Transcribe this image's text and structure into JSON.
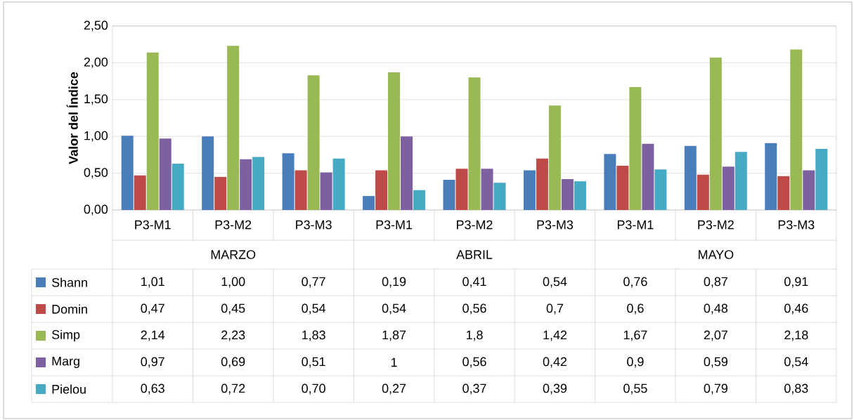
{
  "chart_data": {
    "type": "bar",
    "ylabel": "Valor del Índice",
    "categories": [
      "P3-M1",
      "P3-M2",
      "P3-M3",
      "P3-M1",
      "P3-M2",
      "P3-M3",
      "P3-M1",
      "P3-M2",
      "P3-M3"
    ],
    "annotations": [
      "MARZO",
      "ABRIL",
      "MAYO"
    ],
    "series": [
      {
        "name": "Shann",
        "color": "#4a7ebb",
        "values": [
          1.01,
          1.0,
          0.77,
          0.19,
          0.41,
          0.54,
          0.76,
          0.87,
          0.91
        ],
        "value_labels": [
          "1,01",
          "1,00",
          "0,77",
          "0,19",
          "0,41",
          "0,54",
          "0,76",
          "0,87",
          "0,91"
        ]
      },
      {
        "name": "Domin",
        "color": "#be4b48",
        "values": [
          0.47,
          0.45,
          0.54,
          0.54,
          0.56,
          0.7,
          0.6,
          0.48,
          0.46
        ],
        "value_labels": [
          "0,47",
          "0,45",
          "0,54",
          "0,54",
          "0,56",
          "0,7",
          "0,6",
          "0,48",
          "0,46"
        ]
      },
      {
        "name": "Simp",
        "color": "#98b954",
        "values": [
          2.14,
          2.23,
          1.83,
          1.87,
          1.8,
          1.42,
          1.67,
          2.07,
          2.18
        ],
        "value_labels": [
          "2,14",
          "2,23",
          "1,83",
          "1,87",
          "1,8",
          "1,42",
          "1,67",
          "2,07",
          "2,18"
        ]
      },
      {
        "name": "Marg",
        "color": "#7d60a0",
        "values": [
          0.97,
          0.69,
          0.51,
          1,
          0.56,
          0.42,
          0.9,
          0.59,
          0.54
        ],
        "value_labels": [
          "0,97",
          "0,69",
          "0,51",
          "1",
          "0,56",
          "0,42",
          "0,9",
          "0,59",
          "0,54"
        ]
      },
      {
        "name": "Pielou",
        "color": "#46aac5",
        "values": [
          0.63,
          0.72,
          0.7,
          0.27,
          0.37,
          0.39,
          0.55,
          0.79,
          0.83
        ],
        "value_labels": [
          "0,63",
          "0,72",
          "0,70",
          "0,27",
          "0,37",
          "0,39",
          "0,55",
          "0,79",
          "0,83"
        ]
      }
    ],
    "ylim": [
      0,
      2.5
    ],
    "yticks": [
      {
        "value": 0,
        "label": "0,00"
      },
      {
        "value": 0.5,
        "label": "0,50"
      },
      {
        "value": 1,
        "label": "1,00"
      },
      {
        "value": 1.5,
        "label": "1,50"
      },
      {
        "value": 2,
        "label": "2,00"
      },
      {
        "value": 2.5,
        "label": "2,50"
      }
    ],
    "grid": "y",
    "legend": "left"
  }
}
